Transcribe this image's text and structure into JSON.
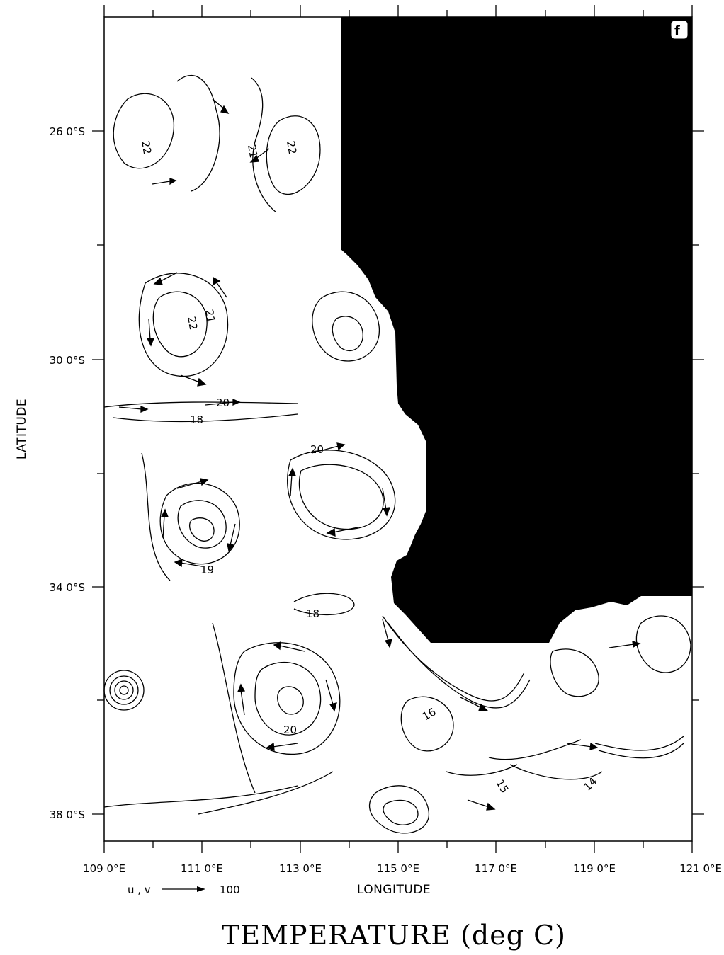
{
  "figure": {
    "panel_label": "f",
    "caption": "TEMPERATURE (deg C)",
    "x_axis_title": "LONGITUDE",
    "y_axis_title": "LATITUDE",
    "x_tick_labels": [
      "109 0°E",
      "111 0°E",
      "113 0°E",
      "115 0°E",
      "117 0°E",
      "119 0°E",
      "121 0°E"
    ],
    "y_tick_labels": [
      "26 0°S",
      "30 0°S",
      "34 0°S",
      "38 0°S"
    ],
    "vector_key_label": "u , v",
    "vector_key_value": "100",
    "contour_labels": [
      "22",
      "21",
      "22",
      "22",
      "21",
      "20",
      "18",
      "20",
      "19",
      "18",
      "20",
      "16",
      "15",
      "14"
    ],
    "land_color": "#000000",
    "ocean_color": "#ffffff"
  },
  "chart_data": {
    "type": "contour",
    "title": "TEMPERATURE (deg C)",
    "xlabel": "LONGITUDE",
    "ylabel": "LATITUDE",
    "xlim": [
      109,
      121
    ],
    "ylim": [
      -38.5,
      -24
    ],
    "x_ticks": [
      109,
      111,
      113,
      115,
      117,
      119,
      121
    ],
    "y_ticks": [
      -26,
      -30,
      -34,
      -38
    ],
    "contour_levels_labeled": [
      14,
      15,
      16,
      18,
      19,
      20,
      21,
      22
    ],
    "vector_scale": 100
  }
}
